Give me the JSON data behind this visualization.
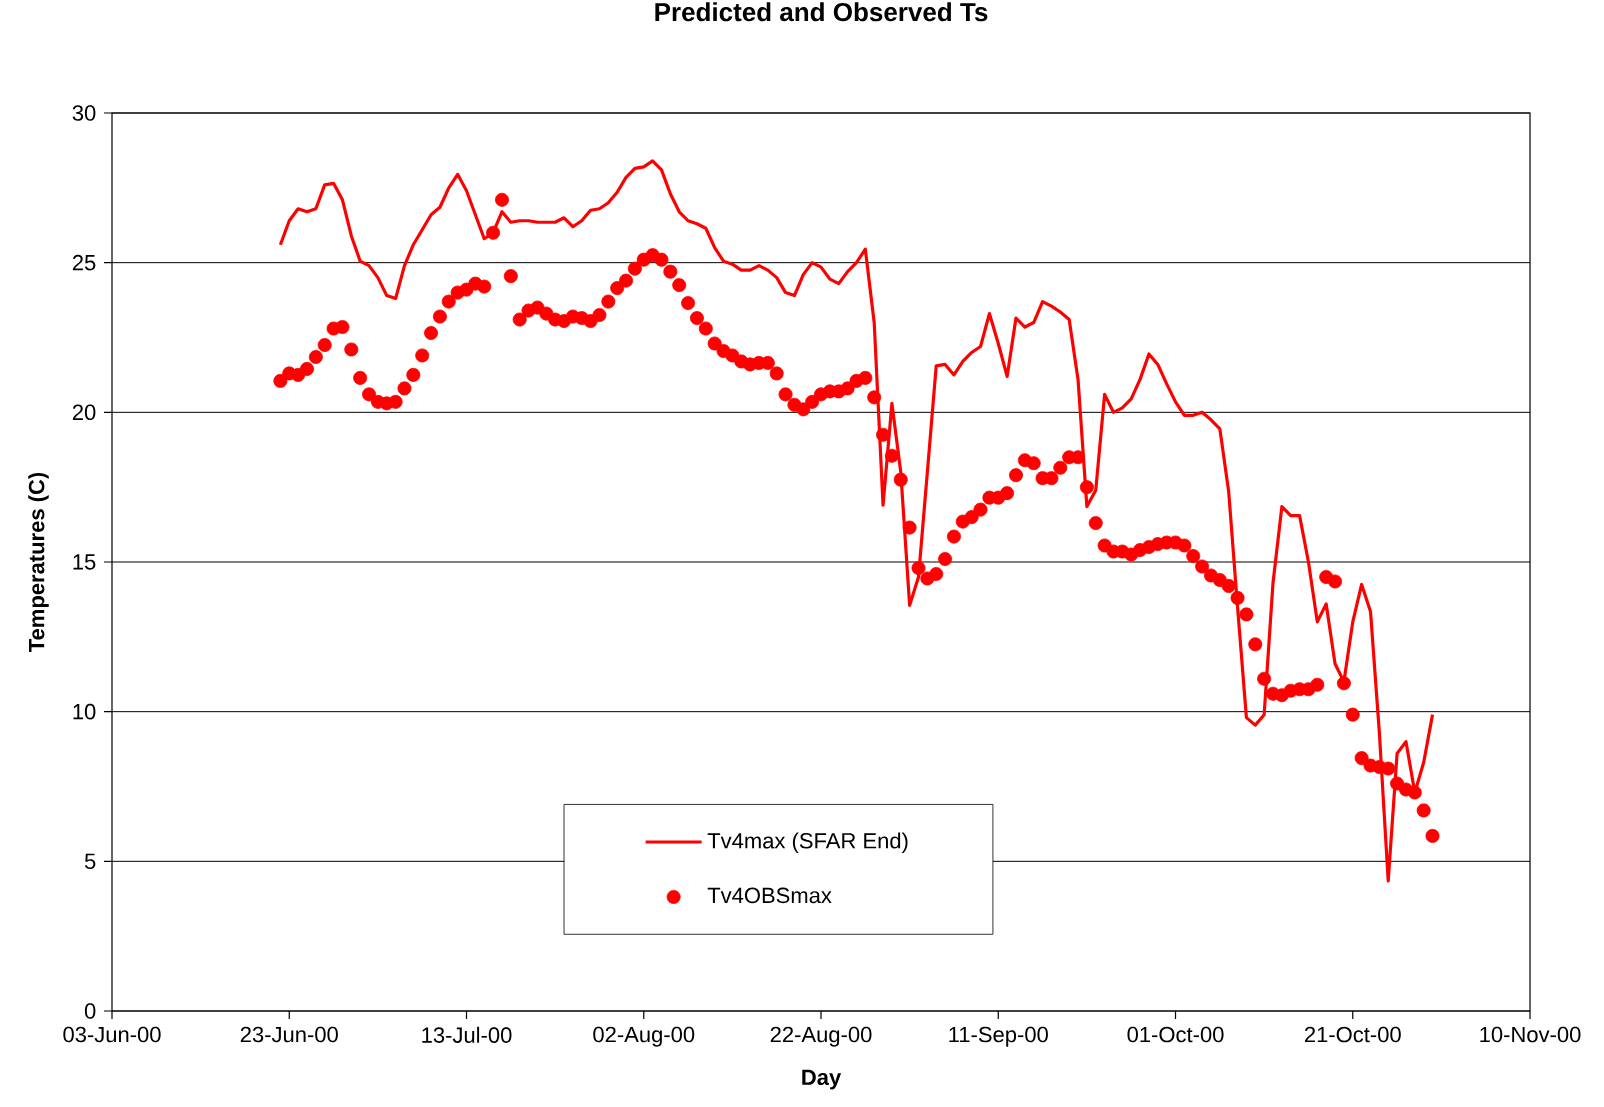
{
  "chart_data": {
    "type": "line",
    "title": "Predicted and Observed Ts",
    "xlabel": "Day",
    "ylabel": "Temperatures (C)",
    "x": [
      "2000-06-22",
      "2000-06-23",
      "2000-06-24",
      "2000-06-25",
      "2000-06-26",
      "2000-06-27",
      "2000-06-28",
      "2000-06-29",
      "2000-06-30",
      "2000-07-01",
      "2000-07-02",
      "2000-07-03",
      "2000-07-04",
      "2000-07-05",
      "2000-07-06",
      "2000-07-07",
      "2000-07-08",
      "2000-07-09",
      "2000-07-10",
      "2000-07-11",
      "2000-07-12",
      "2000-07-13",
      "2000-07-14",
      "2000-07-15",
      "2000-07-16",
      "2000-07-17",
      "2000-07-18",
      "2000-07-19",
      "2000-07-20",
      "2000-07-21",
      "2000-07-22",
      "2000-07-23",
      "2000-07-24",
      "2000-07-25",
      "2000-07-26",
      "2000-07-27",
      "2000-07-28",
      "2000-07-29",
      "2000-07-30",
      "2000-07-31",
      "2000-08-01",
      "2000-08-02",
      "2000-08-03",
      "2000-08-04",
      "2000-08-05",
      "2000-08-06",
      "2000-08-07",
      "2000-08-08",
      "2000-08-09",
      "2000-08-10",
      "2000-08-11",
      "2000-08-12",
      "2000-08-13",
      "2000-08-14",
      "2000-08-15",
      "2000-08-16",
      "2000-08-17",
      "2000-08-18",
      "2000-08-19",
      "2000-08-20",
      "2000-08-21",
      "2000-08-22",
      "2000-08-23",
      "2000-08-24",
      "2000-08-25",
      "2000-08-26",
      "2000-08-27",
      "2000-08-28",
      "2000-08-29",
      "2000-08-30",
      "2000-08-31",
      "2000-09-01",
      "2000-09-02",
      "2000-09-03",
      "2000-09-04",
      "2000-09-05",
      "2000-09-06",
      "2000-09-07",
      "2000-09-08",
      "2000-09-09",
      "2000-09-10",
      "2000-09-11",
      "2000-09-12",
      "2000-09-13",
      "2000-09-14",
      "2000-09-15",
      "2000-09-16",
      "2000-09-17",
      "2000-09-18",
      "2000-09-19",
      "2000-09-20",
      "2000-09-21",
      "2000-09-22",
      "2000-09-23",
      "2000-09-24",
      "2000-09-25",
      "2000-09-26",
      "2000-09-27",
      "2000-09-28",
      "2000-09-29",
      "2000-09-30",
      "2000-10-01",
      "2000-10-02",
      "2000-10-03",
      "2000-10-04",
      "2000-10-05",
      "2000-10-06",
      "2000-10-07",
      "2000-10-08",
      "2000-10-09",
      "2000-10-10",
      "2000-10-11",
      "2000-10-12",
      "2000-10-13",
      "2000-10-14",
      "2000-10-15",
      "2000-10-16",
      "2000-10-17",
      "2000-10-18",
      "2000-10-19",
      "2000-10-20",
      "2000-10-21",
      "2000-10-22",
      "2000-10-23",
      "2000-10-24",
      "2000-10-25",
      "2000-10-26",
      "2000-10-27",
      "2000-10-28",
      "2000-10-29",
      "2000-10-30"
    ],
    "series": [
      {
        "name": "Tv4max (SFAR End)",
        "color": "#ff0000",
        "values": [
          25.6,
          26.4,
          26.8,
          26.7,
          26.8,
          27.6,
          27.65,
          27.1,
          25.9,
          25.05,
          24.9,
          24.5,
          23.9,
          23.8,
          24.9,
          25.6,
          26.1,
          26.6,
          26.85,
          27.5,
          27.95,
          27.4,
          26.6,
          25.8,
          26.0,
          26.7,
          26.35,
          26.4,
          26.4,
          26.35,
          26.35,
          26.35,
          26.5,
          26.2,
          26.4,
          26.75,
          26.8,
          27.0,
          27.35,
          27.85,
          28.15,
          28.2,
          28.4,
          28.1,
          27.3,
          26.7,
          26.4,
          26.3,
          26.15,
          25.5,
          25.05,
          24.95,
          24.75,
          24.75,
          24.9,
          24.75,
          24.5,
          24.0,
          23.9,
          24.6,
          25.0,
          24.85,
          24.45,
          24.3,
          24.7,
          25.0,
          25.45,
          23.0,
          16.9,
          20.3,
          18.0,
          13.55,
          14.5,
          18.0,
          21.55,
          21.6,
          21.25,
          21.7,
          22.0,
          22.2,
          23.3,
          22.3,
          21.2,
          23.15,
          22.85,
          23.0,
          23.7,
          23.55,
          23.35,
          23.1,
          21.1,
          16.85,
          17.4,
          20.6,
          20.0,
          20.15,
          20.45,
          21.1,
          21.95,
          21.6,
          20.95,
          20.35,
          19.9,
          19.9,
          20.0,
          19.75,
          19.45,
          17.35,
          13.5,
          9.8,
          9.55,
          9.9,
          14.3,
          16.85,
          16.55,
          16.55,
          15.0,
          13.0,
          13.6,
          11.6,
          11.0,
          13.0,
          14.25,
          13.35,
          9.3,
          4.35,
          8.6,
          9.0,
          7.3,
          8.3,
          9.9
        ]
      },
      {
        "name": "Tv4OBSmax",
        "type": "scatter",
        "marker": "circle",
        "color": "#ff0000",
        "values": [
          21.05,
          21.3,
          21.25,
          21.45,
          21.85,
          22.25,
          22.8,
          22.85,
          22.1,
          21.15,
          20.6,
          20.35,
          20.3,
          20.35,
          20.8,
          21.25,
          21.9,
          22.65,
          23.2,
          23.7,
          24.0,
          24.1,
          24.3,
          24.2,
          26.0,
          27.1,
          24.55,
          23.1,
          23.4,
          23.5,
          23.3,
          23.1,
          23.05,
          23.2,
          23.15,
          23.05,
          23.25,
          23.7,
          24.15,
          24.4,
          24.8,
          25.1,
          25.25,
          25.1,
          24.7,
          24.25,
          23.65,
          23.15,
          22.8,
          22.3,
          22.05,
          21.9,
          21.7,
          21.6,
          21.65,
          21.65,
          21.3,
          20.6,
          20.25,
          20.1,
          20.35,
          20.6,
          20.7,
          20.7,
          20.8,
          21.05,
          21.15,
          20.5,
          19.25,
          18.55,
          17.75,
          16.15,
          14.8,
          14.45,
          14.6,
          15.1,
          15.85,
          16.35,
          16.5,
          16.75,
          17.15,
          17.15,
          17.3,
          17.9,
          18.4,
          18.3,
          17.8,
          17.8,
          18.15,
          18.5,
          18.5,
          17.5,
          16.3,
          15.55,
          15.35,
          15.35,
          15.25,
          15.4,
          15.5,
          15.6,
          15.65,
          15.65,
          15.55,
          15.2,
          14.85,
          14.55,
          14.4,
          14.2,
          13.8,
          13.25,
          12.25,
          11.1,
          10.6,
          10.55,
          10.7,
          10.75,
          10.75,
          10.9,
          14.5,
          14.35,
          10.95,
          9.9,
          8.45,
          8.2,
          8.15,
          8.1,
          7.6,
          7.4,
          7.3,
          6.7,
          5.85
        ]
      }
    ],
    "xlim": [
      "2000-06-03",
      "2000-11-10"
    ],
    "xticks": [
      {
        "value": "2000-06-03",
        "label": "03-Jun-00"
      },
      {
        "value": "2000-06-23",
        "label": "23-Jun-00"
      },
      {
        "value": "2000-07-13",
        "label": "13-Jul-00"
      },
      {
        "value": "2000-08-02",
        "label": "02-Aug-00"
      },
      {
        "value": "2000-08-22",
        "label": "22-Aug-00"
      },
      {
        "value": "2000-09-11",
        "label": "11-Sep-00"
      },
      {
        "value": "2000-10-01",
        "label": "01-Oct-00"
      },
      {
        "value": "2000-10-21",
        "label": "21-Oct-00"
      },
      {
        "value": "2000-11-10",
        "label": "10-Nov-00"
      }
    ],
    "ylim": [
      0,
      30
    ],
    "yticks": [
      0,
      5,
      10,
      15,
      20,
      25,
      30
    ],
    "grid": "y",
    "legend": "bottom"
  }
}
